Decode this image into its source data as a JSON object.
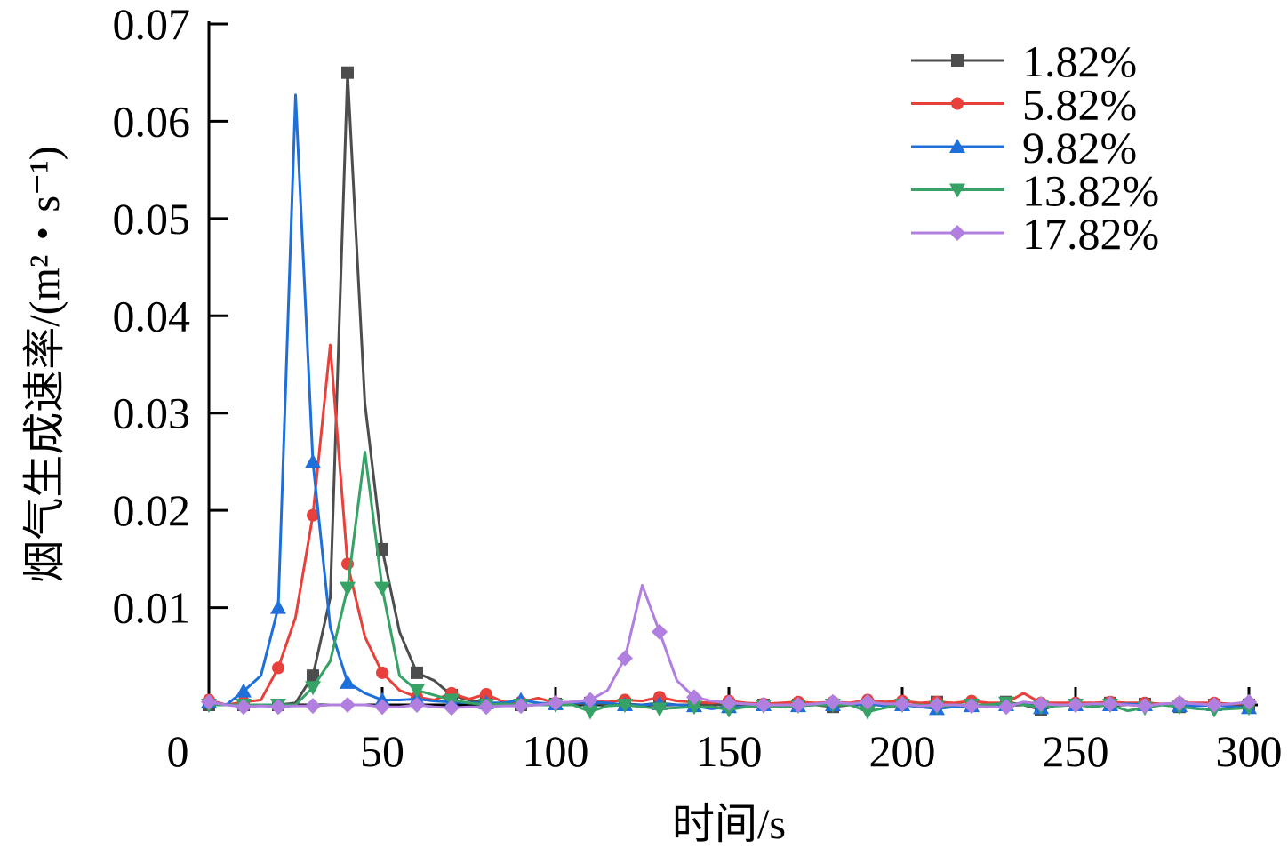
{
  "chart_data": {
    "type": "line",
    "xlabel": "时间/s",
    "ylabel": "烟气生成速率/(m²・s⁻¹)",
    "xlim": [
      0,
      300
    ],
    "ylim": [
      0,
      0.07
    ],
    "xticks": [
      "0",
      "50",
      "100",
      "150",
      "200",
      "250",
      "300"
    ],
    "yticks": [
      "0.01",
      "0.02",
      "0.03",
      "0.04",
      "0.05",
      "0.06",
      "0.07"
    ],
    "legend_position": "top-right",
    "grid": false,
    "x": [
      0,
      5,
      10,
      15,
      20,
      25,
      30,
      35,
      40,
      45,
      50,
      55,
      60,
      65,
      70,
      75,
      80,
      85,
      90,
      95,
      100,
      105,
      110,
      115,
      120,
      125,
      130,
      135,
      140,
      145,
      150,
      155,
      160,
      165,
      170,
      175,
      180,
      185,
      190,
      195,
      200,
      205,
      210,
      215,
      220,
      225,
      230,
      235,
      240,
      245,
      250,
      255,
      260,
      265,
      270,
      275,
      280,
      285,
      290,
      295,
      300
    ],
    "series": [
      {
        "name": "1.82%",
        "color": "#4d4d4d",
        "marker": "square",
        "values": [
          0,
          0,
          0,
          0,
          0,
          0.0002,
          0.003,
          0.011,
          0.065,
          0.031,
          0.016,
          0.0075,
          0.0033,
          0.0025,
          0.001,
          0.0005,
          0.0002,
          0,
          0,
          0,
          0.0001,
          0,
          0.0002,
          0,
          0.0001,
          0,
          0.0002,
          0,
          0,
          0,
          0,
          0,
          0,
          0,
          0,
          0,
          -0.0002,
          0,
          0,
          0,
          0,
          0,
          0.0003,
          0,
          0,
          0,
          0.0003,
          0,
          -0.0005,
          0,
          0,
          0,
          0.0002,
          0,
          0.0001,
          0,
          -0.0002,
          0,
          0,
          0,
          0
        ]
      },
      {
        "name": "5.82%",
        "color": "#e8413c",
        "marker": "circle",
        "values": [
          0.0005,
          0,
          0.0003,
          0.0005,
          0.0038,
          0.009,
          0.0195,
          0.037,
          0.0145,
          0.007,
          0.0033,
          0.0015,
          0.0008,
          0.0005,
          0.0012,
          0.0006,
          0.0011,
          0.0003,
          0.0003,
          0.0007,
          0.0002,
          0.0003,
          0.0004,
          0.0003,
          0.0005,
          0.0004,
          0.0008,
          0.0004,
          0.0003,
          0.0002,
          0.0004,
          0.0002,
          0.0001,
          0.0002,
          0.0003,
          0.0002,
          0.0003,
          0.0002,
          0.0005,
          0.0003,
          0.0004,
          0.0002,
          0.0003,
          0.0002,
          0.0004,
          0.0002,
          0.0002,
          0.0012,
          0.0002,
          0.0002,
          0.0002,
          0.0002,
          0.0003,
          0.0002,
          0.0002,
          0.0001,
          0.0002,
          0.0002,
          0.0002,
          0.0001,
          0.0002
        ]
      },
      {
        "name": "9.82%",
        "color": "#1e6fd9",
        "marker": "triangle-up",
        "values": [
          0.0003,
          0,
          0.0014,
          0.003,
          0.01,
          0.0627,
          0.025,
          0.008,
          0.0023,
          0.0012,
          0.0005,
          0.0005,
          0.0006,
          0.0004,
          0.0003,
          0.0002,
          0.0002,
          0.0002,
          0.0005,
          0.0002,
          0.0001,
          0.0002,
          0.0003,
          0.0002,
          0,
          0,
          0.0001,
          0,
          -0.0001,
          -0.0004,
          -0.0002,
          -0.0002,
          0,
          -0.0002,
          -0.0001,
          0,
          0,
          0,
          0.0001,
          -0.0001,
          0,
          -0.0002,
          -0.0004,
          -0.0002,
          -0.0001,
          -0.0001,
          0,
          0.0001,
          -0.0003,
          0,
          0,
          0,
          0,
          0.0001,
          0,
          0,
          -0.0001,
          -0.0001,
          0,
          -0.0002,
          -0.0003
        ]
      },
      {
        "name": "13.82%",
        "color": "#36a265",
        "marker": "triangle-down",
        "values": [
          0,
          0,
          0,
          0,
          0,
          0,
          0.0018,
          0.0045,
          0.012,
          0.026,
          0.012,
          0.003,
          0.0015,
          0.001,
          0.0005,
          0.0002,
          0,
          0.0001,
          0,
          0,
          0,
          0,
          -0.0007,
          -0.0001,
          0,
          -0.0002,
          -0.0004,
          -0.0003,
          -0.0002,
          -0.0002,
          -0.0005,
          -0.0002,
          -0.0001,
          -0.0002,
          -0.0001,
          0,
          0,
          0,
          -0.0007,
          -0.0003,
          0,
          0,
          -0.0002,
          0,
          0,
          0,
          0.0002,
          0,
          -0.0002,
          -0.0001,
          0,
          -0.0002,
          0,
          -0.0006,
          -0.0003,
          0,
          -0.0002,
          -0.0004,
          -0.0005,
          -0.0004,
          -0.0003
        ]
      },
      {
        "name": "17.82%",
        "color": "#b07fe0",
        "marker": "diamond",
        "values": [
          0.0003,
          0,
          -0.0002,
          -0.0001,
          -0.0002,
          -0.0001,
          -0.0001,
          0,
          0,
          0,
          -0.0002,
          -0.0002,
          0,
          -0.0002,
          -0.0003,
          -0.0002,
          -0.0002,
          -0.0001,
          -0.0001,
          0,
          0.0002,
          0.0003,
          0.0005,
          0.0015,
          0.0048,
          0.0123,
          0.0075,
          0.0025,
          0.0008,
          0.0004,
          0.0002,
          0.0001,
          0,
          0,
          0,
          0.0001,
          0.0003,
          0.0001,
          0.0003,
          0.0001,
          0.0001,
          -0.0001,
          0,
          0,
          -0.0001,
          -0.0002,
          -0.0002,
          0.0003,
          0.0001,
          0,
          0,
          0.0001,
          0.0001,
          0,
          -0.0001,
          0.0001,
          0.0002,
          0.0001,
          0,
          0.0001,
          0.0003
        ]
      }
    ]
  }
}
